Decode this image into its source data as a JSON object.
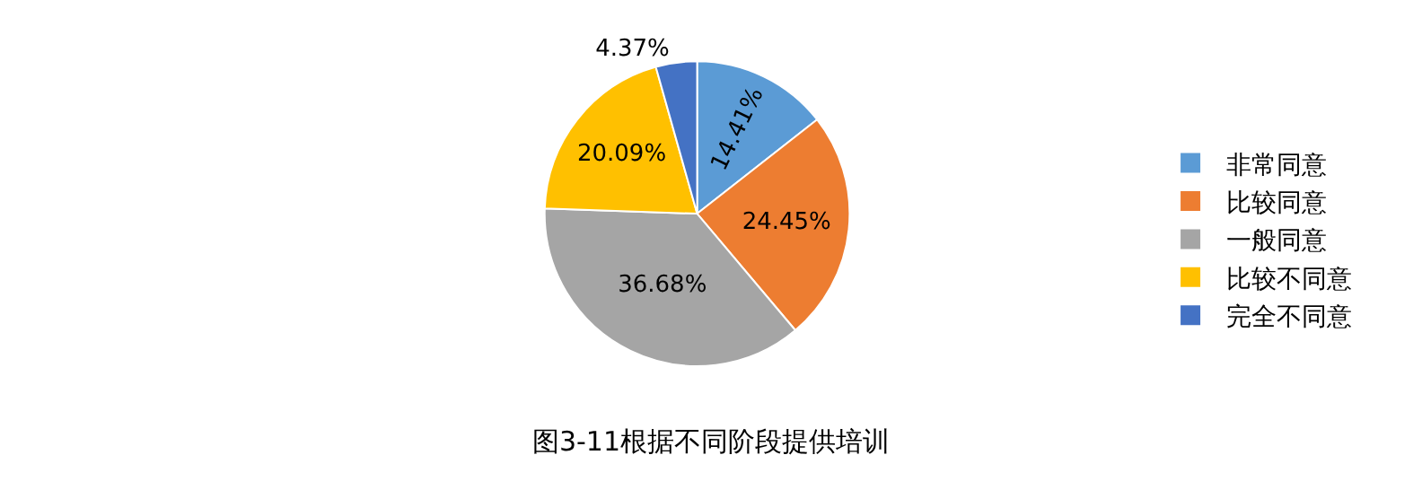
{
  "chart_data": {
    "type": "pie",
    "title": "图3-11根据不同阶段提供培训",
    "categories": [
      "非常同意",
      "比较同意",
      "一般同意",
      "比较不同意",
      "完全不同意"
    ],
    "values": [
      14.41,
      24.45,
      36.68,
      20.09,
      4.37
    ],
    "colors": [
      "#5b9bd5",
      "#ed7d31",
      "#a5a5a5",
      "#ffc000",
      "#4472c4"
    ],
    "value_labels": [
      "14.41%",
      "24.45%",
      "36.68%",
      "20.09%",
      "4.37%"
    ],
    "legend": "right"
  }
}
